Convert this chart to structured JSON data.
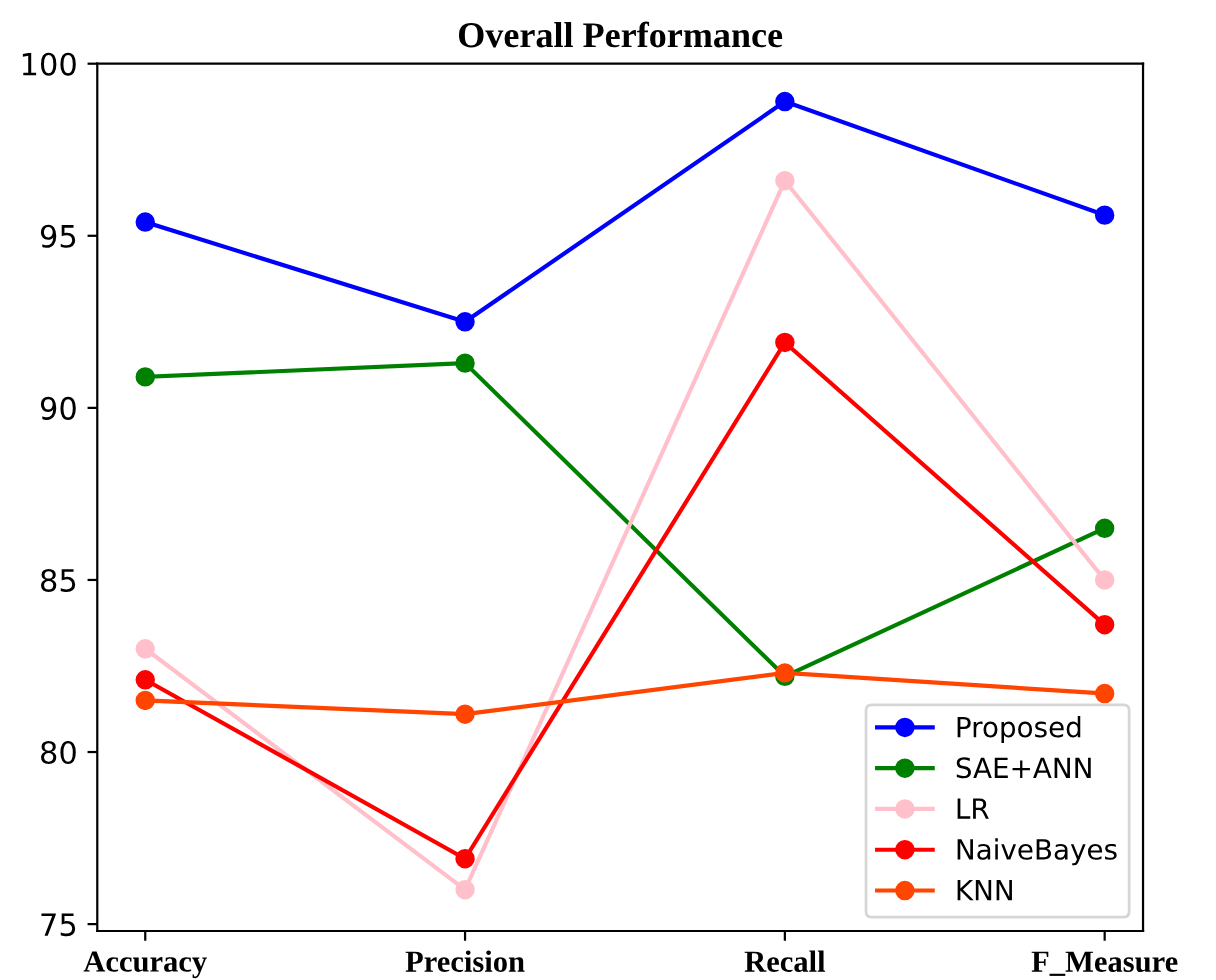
{
  "chart_data": {
    "type": "line",
    "title": "Overall Performance",
    "categories": [
      "Accuracy",
      "Precision",
      "Recall",
      "F_Measure"
    ],
    "series": [
      {
        "name": "Proposed",
        "color": "#0000ff",
        "values": [
          95.4,
          92.5,
          98.9,
          95.6
        ]
      },
      {
        "name": "SAE+ANN",
        "color": "#008000",
        "values": [
          90.9,
          91.3,
          82.2,
          86.5
        ]
      },
      {
        "name": "LR",
        "color": "#ffc0cb",
        "values": [
          83.0,
          76.0,
          96.6,
          85.0
        ]
      },
      {
        "name": "NaiveBayes",
        "color": "#ff0000",
        "values": [
          82.1,
          76.9,
          91.9,
          83.7
        ]
      },
      {
        "name": "KNN",
        "color": "#ff4500",
        "values": [
          81.5,
          81.1,
          82.3,
          81.7
        ]
      }
    ],
    "ylim": [
      74.8,
      100
    ],
    "yticks": [
      75,
      80,
      85,
      90,
      95,
      100
    ],
    "grid": false,
    "legend": "bottom right",
    "marker": "circle",
    "line_style": "solid"
  }
}
